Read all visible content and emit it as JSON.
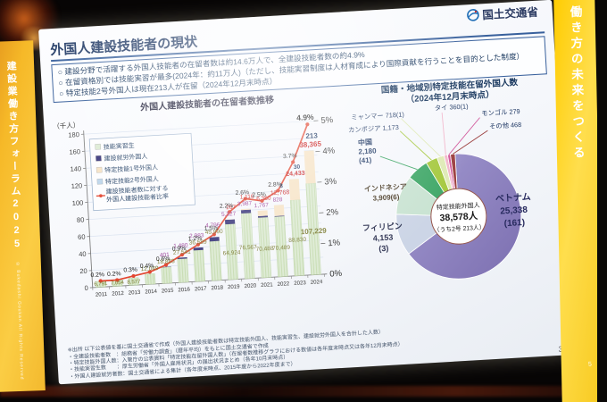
{
  "stage": {
    "left_banner": {
      "text": "建設業働き方フォーラム2025",
      "copyright": "© Bukedashi Goukan All Rights Reserved"
    },
    "right_banner": {
      "text": "働き方の未来をつくる",
      "corner_number": "5"
    }
  },
  "slide": {
    "logo_text": "国土交通省",
    "title": "外国人建設技能者の現状",
    "bullets": [
      "建設分野で活躍する外国人技能者の在留者数は約14.6万人で、全建設技能者数の約4.9%",
      "在留資格別では技能実習が最多(2024年：約11万人)（ただし、技能実習制度は人材育成により国際貢献を行うことを目的とした制度）",
      "特定技能2号外国人は現在213人が在留（2024年12月末時点）"
    ],
    "page_number": "3",
    "footnotes": [
      "※出所 以下公表値を基に国土交通省で作成（外国人建設技能者数は特定技能外国人、技能実習生、建設就労外国人を合計した人数）",
      "・全建設技能者数　：総務省「労働力調査」（暦年平均）をもとに国土交通省で作成",
      "・特定技能外国人数：入管庁の公表資料「特定技能在留外国人数」（在留者数推移グラフにおける数値は各年度末時点又は各年12月末時点）",
      "・技能実習生数　　：厚生労働省「外国人雇用状況」の届出状況まとめ（各年10月末時点）",
      "・外国人建設就労者数：国土交通省による集計（各年度末時点、2015年度から2022年度まで）"
    ]
  },
  "chart_data": [
    {
      "type": "bar",
      "title": "外国人建設技能者の在留者数推移",
      "unit_label": "（千人）",
      "categories": [
        "2011",
        "2012",
        "2013",
        "2014",
        "2015",
        "2016",
        "2017",
        "2018",
        "2019",
        "2020",
        "2021",
        "2022",
        "2023",
        "2024"
      ],
      "series": [
        {
          "name": "技能実習生",
          "color": "#dcead2",
          "stripe": "#c7dcb2",
          "label_color": "#7a7a2f",
          "values": [
            6791,
            7054,
            8577,
            12049,
            18883,
            27541,
            36589,
            45990,
            64924,
            76567,
            70488,
            70489,
            88830,
            107229
          ]
        },
        {
          "name": "建設就労外国人",
          "color": "#343177",
          "label_color": "#9a3d98",
          "values": [
            0,
            0,
            0,
            0,
            401,
            1480,
            2983,
            4796,
            5327,
            3987,
            1767,
            828,
            0,
            0
          ]
        },
        {
          "name": "特定技能1号外国人",
          "color": "#f6e2c3",
          "label_color": "#cc1f1f",
          "values": [
            0,
            0,
            0,
            0,
            0,
            0,
            0,
            0,
            267,
            1116,
            6360,
            12768,
            24433,
            38365
          ]
        },
        {
          "name": "特定技能2号外国人",
          "color": "#bcd5ea",
          "label_color": "#1f3864",
          "values": [
            0,
            0,
            0,
            0,
            0,
            0,
            0,
            0,
            0,
            0,
            0,
            8,
            30,
            213
          ]
        }
      ],
      "line": {
        "name": "建設技能者数に対する外国人建設技能者比率",
        "legend_lines": [
          "建設技能者数に対する",
          "外国人建設技能者比率"
        ],
        "color": "#e2452f",
        "values": [
          0.2,
          0.2,
          0.3,
          0.4,
          0.6,
          0.9,
          1.2,
          1.5,
          2.2,
          2.6,
          2.5,
          2.8,
          3.7,
          4.9
        ]
      },
      "ylim": [
        0,
        180
      ],
      "y2lim": [
        0,
        5
      ],
      "yticks": [
        0,
        20,
        40,
        60,
        80,
        100,
        120,
        140,
        160,
        180
      ],
      "y2ticks": [
        "0%",
        "1%",
        "2%",
        "3%",
        "4%",
        "5%"
      ]
    },
    {
      "type": "pie",
      "title_lines": [
        "国籍・地域別特定技能在留外国人数",
        "（2024年12月末時点）"
      ],
      "center": {
        "line1": "特定技能外国人",
        "line2": "38,578人",
        "line3": "（うち2号 213人）"
      },
      "total": 38578,
      "segments": [
        {
          "label": "ベトナム",
          "display": "25,338",
          "sub": "(161)",
          "value": 25338,
          "color": "#8a7ebd"
        },
        {
          "label": "フィリピン",
          "display": "4,153",
          "sub": "(3)",
          "value": 4153,
          "color": "#ccd5e6"
        },
        {
          "label": "インドネシア",
          "display": "3,909(6)",
          "value": 3909,
          "color": "#c9e3d2"
        },
        {
          "label": "中国",
          "display": "2,180",
          "sub": "(41)",
          "value": 2180,
          "color": "#41a869"
        },
        {
          "label": "カンボジア",
          "display": "1,173",
          "value": 1173,
          "color": "#a6c940"
        },
        {
          "label": "ミャンマー",
          "display": "718(1)",
          "value": 718,
          "color": "#dfeab6"
        },
        {
          "label": "タイ",
          "display": "360(1)",
          "value": 360,
          "color": "#f2b6cb"
        },
        {
          "label": "モンゴル",
          "display": "279",
          "value": 279,
          "color": "#d1569a"
        },
        {
          "label": "その他",
          "display": "468",
          "value": 468,
          "color": "#9c4040"
        }
      ]
    }
  ]
}
